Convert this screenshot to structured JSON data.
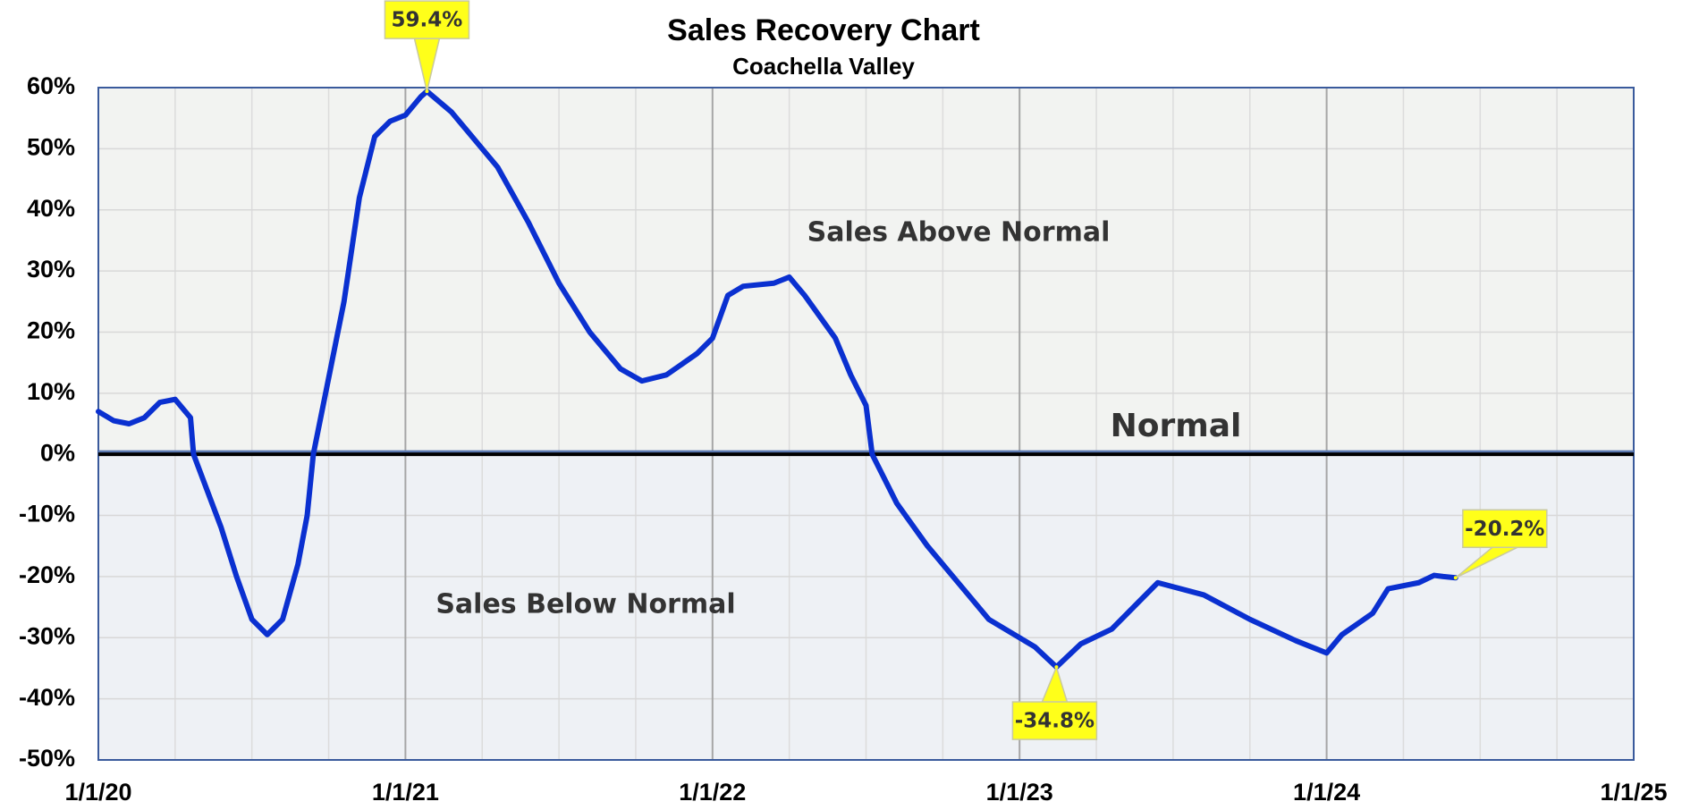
{
  "chart_data": {
    "type": "line",
    "title": "Sales Recovery Chart",
    "subtitle": "Coachella Valley",
    "x": [
      2020.0,
      2020.05,
      2020.1,
      2020.15,
      2020.2,
      2020.25,
      2020.3,
      2020.31,
      2020.4,
      2020.45,
      2020.5,
      2020.55,
      2020.6,
      2020.65,
      2020.68,
      2020.7,
      2020.8,
      2020.85,
      2020.9,
      2020.95,
      2021.0,
      2021.05,
      2021.07,
      2021.15,
      2021.2,
      2021.25,
      2021.3,
      2021.4,
      2021.5,
      2021.6,
      2021.7,
      2021.77,
      2021.85,
      2021.95,
      2022.0,
      2022.05,
      2022.1,
      2022.2,
      2022.25,
      2022.3,
      2022.4,
      2022.45,
      2022.5,
      2022.52,
      2022.6,
      2022.7,
      2022.8,
      2022.85,
      2022.9,
      2023.0,
      2023.05,
      2023.12,
      2023.2,
      2023.3,
      2023.45,
      2023.6,
      2023.75,
      2023.9,
      2023.95,
      2024.0,
      2024.05,
      2024.15,
      2024.2,
      2024.3,
      2024.35,
      2024.38,
      2024.42
    ],
    "series": [
      {
        "name": "Sales Recovery",
        "color": "#0a30d0",
        "values": [
          7,
          5.5,
          5,
          6,
          8.5,
          9,
          6,
          0,
          -12,
          -20,
          -27,
          -29.5,
          -27,
          -18,
          -10,
          0,
          25,
          42,
          52,
          54.5,
          55.5,
          58.5,
          59.4,
          56,
          53,
          50,
          47,
          38,
          28,
          20,
          14,
          12,
          13,
          16.5,
          19,
          26,
          27.5,
          28,
          29,
          26,
          19,
          13,
          8,
          0,
          -8,
          -15,
          -21,
          -24,
          -27,
          -30,
          -31.5,
          -34.8,
          -31,
          -28.6,
          -21,
          -23,
          -27,
          -30.5,
          -31.5,
          -32.5,
          -29.5,
          -26,
          -22,
          -21,
          -19.8,
          -20,
          -20.2
        ]
      }
    ],
    "xlim": [
      2020,
      2025
    ],
    "xticks": [
      {
        "value": 2020,
        "label": "1/1/20"
      },
      {
        "value": 2021,
        "label": "1/1/21"
      },
      {
        "value": 2022,
        "label": "1/1/22"
      },
      {
        "value": 2023,
        "label": "1/1/23"
      },
      {
        "value": 2024,
        "label": "1/1/24"
      },
      {
        "value": 2025,
        "label": "1/1/25"
      }
    ],
    "xminorticks": [
      2020.25,
      2020.5,
      2020.75,
      2021.25,
      2021.5,
      2021.75,
      2022.25,
      2022.5,
      2022.75,
      2023.25,
      2023.5,
      2023.75,
      2024.25,
      2024.5,
      2024.75
    ],
    "ylim": [
      -50,
      60
    ],
    "yticks": [
      {
        "value": -50,
        "label": "-50%"
      },
      {
        "value": -40,
        "label": "-40%"
      },
      {
        "value": -30,
        "label": "-30%"
      },
      {
        "value": -20,
        "label": "-20%"
      },
      {
        "value": -10,
        "label": "-10%"
      },
      {
        "value": 0,
        "label": "0%"
      },
      {
        "value": 10,
        "label": "10%"
      },
      {
        "value": 20,
        "label": "20%"
      },
      {
        "value": 30,
        "label": "30%"
      },
      {
        "value": 40,
        "label": "40%"
      },
      {
        "value": 50,
        "label": "50%"
      },
      {
        "value": 60,
        "label": "60%"
      }
    ],
    "grid": true,
    "callouts": [
      {
        "label": "59.4%",
        "x": 2021.07,
        "value": 59.4
      },
      {
        "label": "-34.8%",
        "x": 2023.12,
        "value": -34.8
      },
      {
        "label": "-20.2%",
        "x": 2024.42,
        "value": -20.2
      }
    ],
    "region_labels": {
      "above": "Sales Above Normal",
      "below": "Sales Below Normal",
      "normal": "Normal"
    }
  }
}
